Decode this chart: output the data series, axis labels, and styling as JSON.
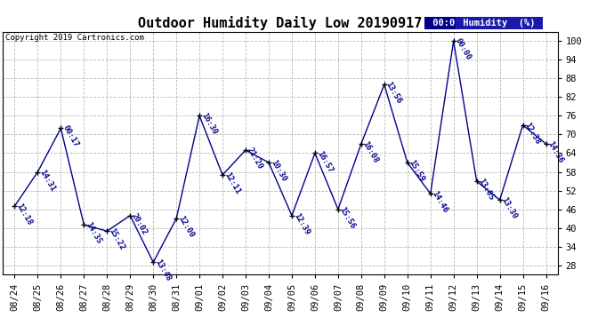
{
  "title": "Outdoor Humidity Daily Low 20190917",
  "copyright": "Copyright 2019 Cartronics.com",
  "legend_time": "00:00",
  "legend_label": "Humidity  (%)",
  "ylim": [
    25,
    103
  ],
  "yticks": [
    28,
    34,
    40,
    46,
    52,
    58,
    64,
    70,
    76,
    82,
    88,
    94,
    100
  ],
  "bg_color": "#ffffff",
  "grid_color": "#b8b8b8",
  "line_color": "#00008B",
  "point_color": "#000000",
  "dates": [
    "08/24",
    "08/25",
    "08/26",
    "08/27",
    "08/28",
    "08/29",
    "08/30",
    "08/31",
    "09/01",
    "09/02",
    "09/03",
    "09/04",
    "09/05",
    "09/06",
    "09/07",
    "09/08",
    "09/09",
    "09/10",
    "09/11",
    "09/12",
    "09/13",
    "09/14",
    "09/15",
    "09/16"
  ],
  "values": [
    47,
    58,
    72,
    41,
    39,
    44,
    29,
    43,
    76,
    57,
    65,
    61,
    44,
    64,
    46,
    67,
    86,
    61,
    51,
    100,
    55,
    49,
    73,
    67
  ],
  "time_labels": [
    "12:18",
    "14:31",
    "00:17",
    "14:35",
    "15:22",
    "20:02",
    "13:48",
    "12:00",
    "16:30",
    "12:11",
    "21:20",
    "10:30",
    "12:39",
    "16:57",
    "15:56",
    "16:08",
    "13:56",
    "15:59",
    "14:46",
    "00:00",
    "13:05",
    "13:30",
    "12:38",
    "14:36"
  ],
  "label_rotation": -60,
  "title_fontsize": 11,
  "tick_fontsize": 7.5,
  "label_fontsize": 6.5,
  "legend_time_color": "#0000ff",
  "legend_bg": "#00008B",
  "legend_label_bg": "#1a1aaa"
}
